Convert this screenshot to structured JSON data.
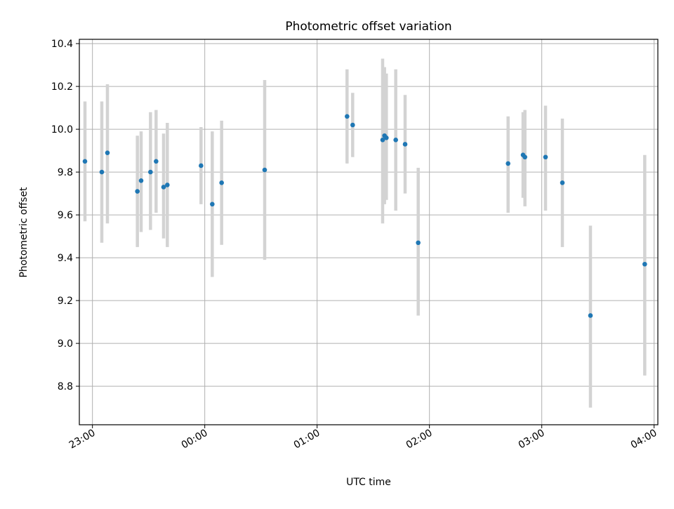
{
  "chart_data": {
    "type": "scatter",
    "title": "Photometric offset variation",
    "xlabel": "UTC time",
    "ylabel": "Photometric offset",
    "x_axis_kind": "time",
    "xlim": [
      "22:53",
      "04:02"
    ],
    "ylim": [
      8.62,
      10.42
    ],
    "xticks": [
      "23:00",
      "00:00",
      "01:00",
      "02:00",
      "03:00",
      "04:00"
    ],
    "yticks": [
      "8.8",
      "9.0",
      "9.2",
      "9.4",
      "9.6",
      "9.8",
      "10.0",
      "10.2",
      "10.4"
    ],
    "grid": true,
    "marker_color": "#1f77b4",
    "errorbar_color": "#d3d3d3",
    "points": [
      {
        "time": "22:56",
        "y": 9.85,
        "ylow": 9.57,
        "yhigh": 10.13
      },
      {
        "time": "23:05",
        "y": 9.8,
        "ylow": 9.47,
        "yhigh": 10.13
      },
      {
        "time": "23:08",
        "y": 9.89,
        "ylow": 9.56,
        "yhigh": 10.21
      },
      {
        "time": "23:24",
        "y": 9.71,
        "ylow": 9.45,
        "yhigh": 9.97
      },
      {
        "time": "23:26",
        "y": 9.76,
        "ylow": 9.52,
        "yhigh": 9.99
      },
      {
        "time": "23:31",
        "y": 9.8,
        "ylow": 9.53,
        "yhigh": 10.08
      },
      {
        "time": "23:34",
        "y": 9.85,
        "ylow": 9.61,
        "yhigh": 10.09
      },
      {
        "time": "23:38",
        "y": 9.73,
        "ylow": 9.49,
        "yhigh": 9.98
      },
      {
        "time": "23:40",
        "y": 9.74,
        "ylow": 9.45,
        "yhigh": 10.03
      },
      {
        "time": "23:58",
        "y": 9.83,
        "ylow": 9.65,
        "yhigh": 10.01
      },
      {
        "time": "00:04",
        "y": 9.65,
        "ylow": 9.31,
        "yhigh": 9.99
      },
      {
        "time": "00:09",
        "y": 9.75,
        "ylow": 9.46,
        "yhigh": 10.04
      },
      {
        "time": "00:32",
        "y": 9.81,
        "ylow": 9.39,
        "yhigh": 10.23
      },
      {
        "time": "01:16",
        "y": 10.06,
        "ylow": 9.84,
        "yhigh": 10.28
      },
      {
        "time": "01:19",
        "y": 10.02,
        "ylow": 9.87,
        "yhigh": 10.17
      },
      {
        "time": "01:35",
        "y": 9.95,
        "ylow": 9.56,
        "yhigh": 10.33
      },
      {
        "time": "01:36",
        "y": 9.97,
        "ylow": 9.65,
        "yhigh": 10.29
      },
      {
        "time": "01:37",
        "y": 9.96,
        "ylow": 9.67,
        "yhigh": 10.26
      },
      {
        "time": "01:42",
        "y": 9.95,
        "ylow": 9.62,
        "yhigh": 10.28
      },
      {
        "time": "01:47",
        "y": 9.93,
        "ylow": 9.7,
        "yhigh": 10.16
      },
      {
        "time": "01:54",
        "y": 9.47,
        "ylow": 9.13,
        "yhigh": 9.82
      },
      {
        "time": "02:42",
        "y": 9.84,
        "ylow": 9.61,
        "yhigh": 10.06
      },
      {
        "time": "02:50",
        "y": 9.88,
        "ylow": 9.68,
        "yhigh": 10.08
      },
      {
        "time": "02:51",
        "y": 9.87,
        "ylow": 9.64,
        "yhigh": 10.09
      },
      {
        "time": "03:02",
        "y": 9.87,
        "ylow": 9.62,
        "yhigh": 10.11
      },
      {
        "time": "03:11",
        "y": 9.75,
        "ylow": 9.45,
        "yhigh": 10.05
      },
      {
        "time": "03:26",
        "y": 9.13,
        "ylow": 8.7,
        "yhigh": 9.55
      },
      {
        "time": "03:55",
        "y": 9.37,
        "ylow": 8.85,
        "yhigh": 9.88
      }
    ]
  }
}
